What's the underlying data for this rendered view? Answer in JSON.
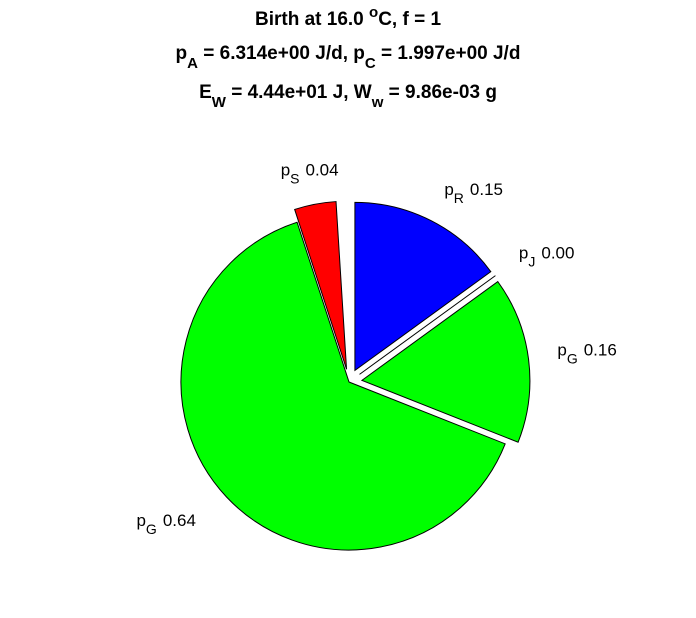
{
  "chart_data": {
    "type": "pie",
    "title": [
      [
        {
          "text": "Birth at 16.0 "
        },
        {
          "text": "o",
          "shift": "super"
        },
        {
          "text": "C, f = 1"
        }
      ],
      [
        {
          "text": "p"
        },
        {
          "text": "A",
          "shift": "sub"
        },
        {
          "text": " = 6.314e+00 J/d, p"
        },
        {
          "text": "C",
          "shift": "sub"
        },
        {
          "text": " = 1.997e+00 J/d"
        }
      ],
      [
        {
          "text": "E"
        },
        {
          "text": "W",
          "shift": "sub"
        },
        {
          "text": " = 4.44e+01 J, W"
        },
        {
          "text": "w",
          "shift": "sub"
        },
        {
          "text": " = 9.86e-03 g"
        }
      ]
    ],
    "categories": [
      {
        "text": "p",
        "sub": "R"
      },
      {
        "text": "p",
        "sub": "J"
      },
      {
        "text": "p",
        "sub": "G"
      },
      {
        "text": "p",
        "sub": "G"
      },
      {
        "text": "p",
        "sub": "S"
      }
    ],
    "values": [
      0.15,
      0.0,
      0.16,
      0.64,
      0.04
    ],
    "value_labels": [
      "0.15",
      "0.00",
      "0.16",
      "0.64",
      "0.04"
    ],
    "colors": [
      "#0000ff",
      "#400040",
      "#00ff00",
      "#00ff00",
      "#ff0000"
    ],
    "explode": [
      true,
      true,
      true,
      false,
      true
    ]
  }
}
